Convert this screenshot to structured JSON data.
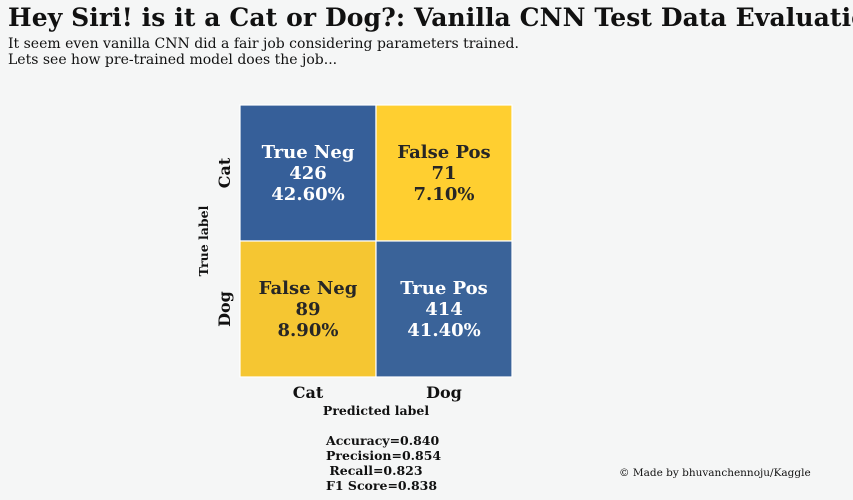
{
  "header": {
    "title": "Hey Siri! is it a Cat or Dog?: Vanilla CNN Test Data Evaluation",
    "subtitle": "It seem even vanilla CNN did a fair job considering parameters trained.\nLets see how pre-trained model does the job..."
  },
  "chart_data": {
    "type": "heatmap",
    "x_categories": [
      "Cat",
      "Dog"
    ],
    "y_categories": [
      "Cat",
      "Dog"
    ],
    "xlabel": "Predicted label",
    "ylabel": "True label",
    "cells": [
      [
        {
          "name": "True Neg",
          "count": "426",
          "percent": "42.60%",
          "value": 426,
          "color": "#365f99",
          "text_color": "#ffffff"
        },
        {
          "name": "False Pos",
          "count": "71",
          "percent": "7.10%",
          "value": 71,
          "color": "#ffcf30",
          "text_color": "#262626"
        }
      ],
      [
        {
          "name": "False Neg",
          "count": "89",
          "percent": "8.90%",
          "value": 89,
          "color": "#f5c632",
          "text_color": "#262626"
        },
        {
          "name": "True Pos",
          "count": "414",
          "percent": "41.40%",
          "value": 414,
          "color": "#3a6399",
          "text_color": "#ffffff"
        }
      ]
    ]
  },
  "metrics": {
    "accuracy": "Accuracy=0.840",
    "precision": "Precision=0.854",
    "recall": "Recall=0.823",
    "f1": "F1 Score=0.838"
  },
  "credit": "© Made by bhuvanchennoju/Kaggle"
}
